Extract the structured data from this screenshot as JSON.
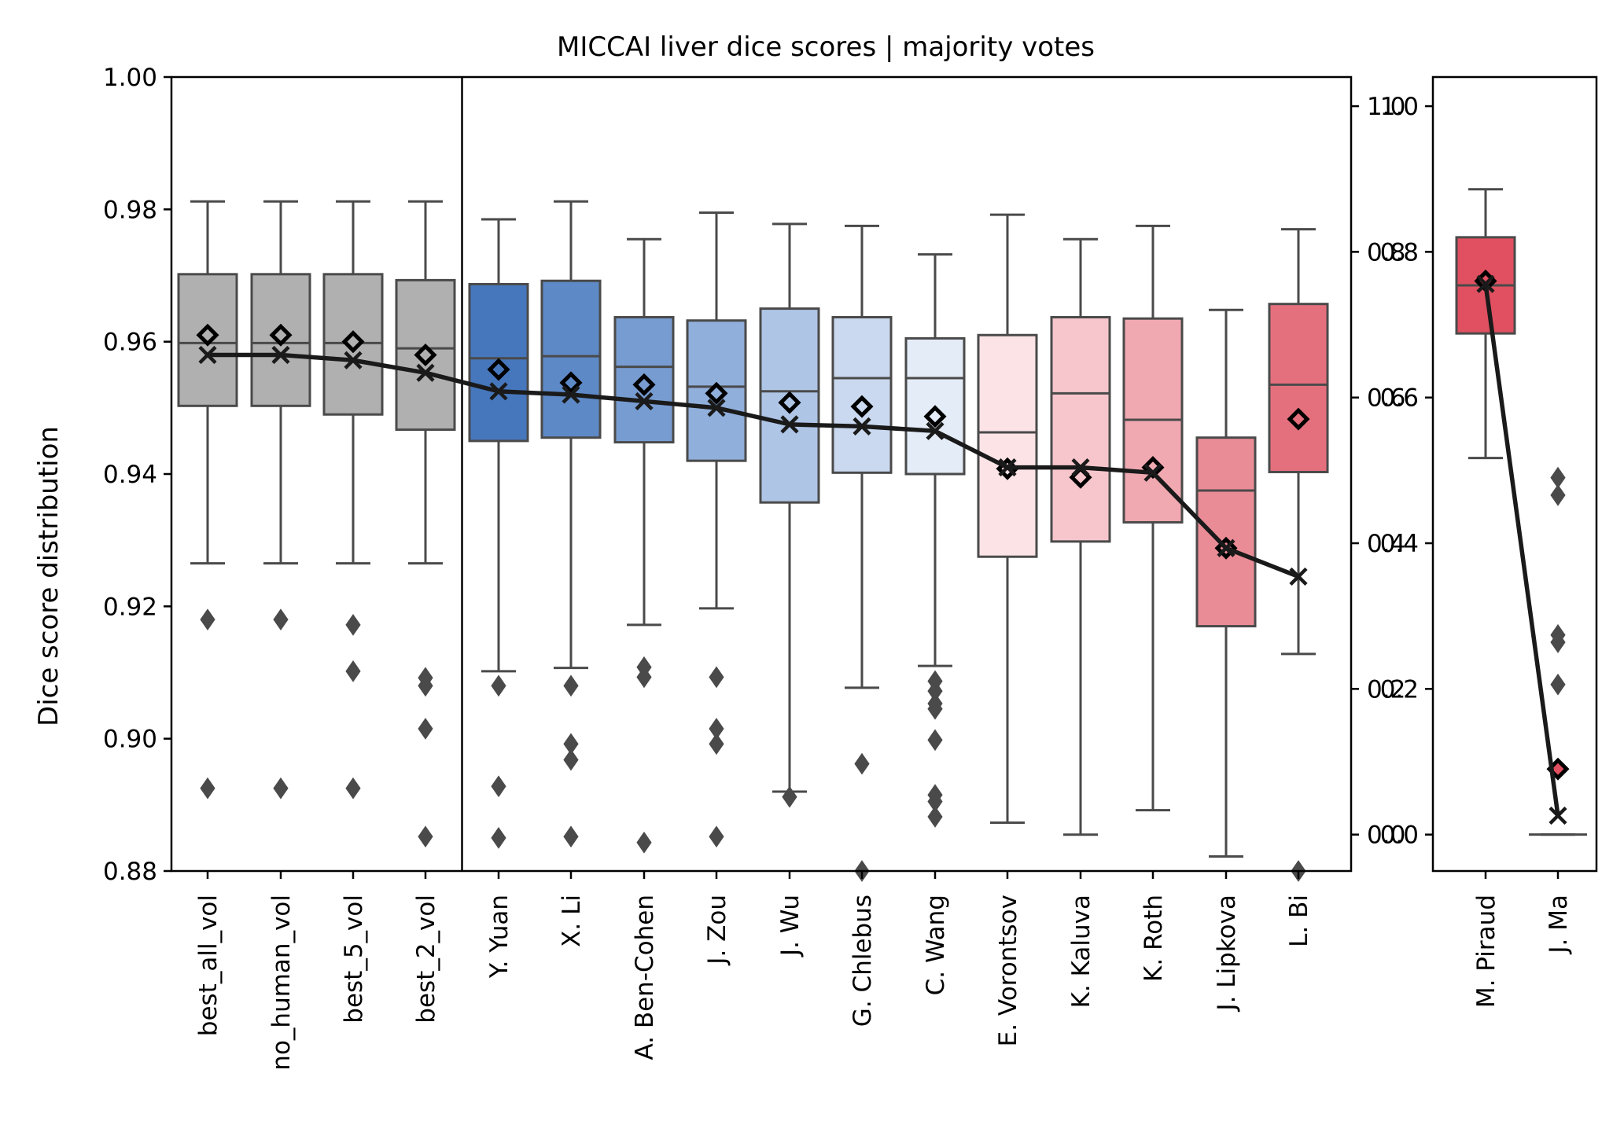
{
  "chart_data": {
    "type": "box",
    "title": "MICCAI liver dice scores | majority votes",
    "ylabel": "Dice score distribution",
    "xlabel": "",
    "grid": false,
    "legend": "none",
    "panels": [
      {
        "name": "main",
        "ylim": [
          0.88,
          1.0
        ],
        "yticks": [
          "1.00",
          "0.98",
          "0.96",
          "0.94",
          "0.92",
          "0.90",
          "0.88"
        ],
        "yticks_values": [
          1.0,
          0.98,
          0.96,
          0.94,
          0.92,
          0.9,
          0.88
        ],
        "separator_after_index": 3,
        "boxes": [
          {
            "label": "best_all_vol",
            "color": "#b0b0b0",
            "whislo": 0.9265,
            "q1": 0.9503,
            "med": 0.9598,
            "q3": 0.9702,
            "whishi": 0.9812,
            "mean": 0.961,
            "x_marker": 0.958,
            "outliers": [
              0.918,
              0.8925
            ]
          },
          {
            "label": "no_human_vol",
            "color": "#b0b0b0",
            "whislo": 0.9265,
            "q1": 0.9503,
            "med": 0.9598,
            "q3": 0.9702,
            "whishi": 0.9812,
            "mean": 0.961,
            "x_marker": 0.958,
            "outliers": [
              0.918,
              0.8925
            ]
          },
          {
            "label": "best_5_vol",
            "color": "#b0b0b0",
            "whislo": 0.9265,
            "q1": 0.949,
            "med": 0.9598,
            "q3": 0.9702,
            "whishi": 0.9812,
            "mean": 0.96,
            "x_marker": 0.9572,
            "outliers": [
              0.9172,
              0.9102,
              0.8925
            ]
          },
          {
            "label": "best_2_vol",
            "color": "#b0b0b0",
            "whislo": 0.9265,
            "q1": 0.9467,
            "med": 0.959,
            "q3": 0.9693,
            "whishi": 0.9812,
            "mean": 0.958,
            "x_marker": 0.9553,
            "outliers": [
              0.9092,
              0.908,
              0.9015,
              0.8852
            ]
          },
          {
            "label": "Y. Yuan",
            "color": "#4677bd",
            "whislo": 0.9102,
            "q1": 0.945,
            "med": 0.9575,
            "q3": 0.9687,
            "whishi": 0.9785,
            "mean": 0.9558,
            "x_marker": 0.9525,
            "outliers": [
              0.908,
              0.8928,
              0.885
            ]
          },
          {
            "label": "X. Li",
            "color": "#5e89c7",
            "whislo": 0.9107,
            "q1": 0.9455,
            "med": 0.9578,
            "q3": 0.9692,
            "whishi": 0.9812,
            "mean": 0.9538,
            "x_marker": 0.952,
            "outliers": [
              0.908,
              0.8992,
              0.8968,
              0.8852
            ]
          },
          {
            "label": "A. Ben-Cohen",
            "color": "#779cd1",
            "whislo": 0.9172,
            "q1": 0.9448,
            "med": 0.9562,
            "q3": 0.9637,
            "whishi": 0.9755,
            "mean": 0.9535,
            "x_marker": 0.951,
            "outliers": [
              0.9108,
              0.9093,
              0.8843
            ]
          },
          {
            "label": "J. Zou",
            "color": "#90afdb",
            "whislo": 0.9197,
            "q1": 0.942,
            "med": 0.9532,
            "q3": 0.9632,
            "whishi": 0.9795,
            "mean": 0.9522,
            "x_marker": 0.95,
            "outliers": [
              0.9093,
              0.9015,
              0.8992,
              0.8852
            ]
          },
          {
            "label": "J. Wu",
            "color": "#aec5e6",
            "whislo": 0.892,
            "q1": 0.9357,
            "med": 0.9525,
            "q3": 0.965,
            "whishi": 0.9778,
            "mean": 0.9508,
            "x_marker": 0.9475,
            "outliers": [
              0.8912
            ]
          },
          {
            "label": "G. Chlebus",
            "color": "#cad9ef",
            "whislo": 0.9077,
            "q1": 0.9402,
            "med": 0.9545,
            "q3": 0.9637,
            "whishi": 0.9775,
            "mean": 0.9502,
            "x_marker": 0.9472,
            "outliers": [
              0.8962,
              0.88
            ]
          },
          {
            "label": "C. Wang",
            "color": "#e4ecf7",
            "whislo": 0.911,
            "q1": 0.94,
            "med": 0.9545,
            "q3": 0.9605,
            "whishi": 0.9732,
            "mean": 0.9487,
            "x_marker": 0.9465,
            "outliers": [
              0.9087,
              0.9072,
              0.9053,
              0.9045,
              0.8998,
              0.8915,
              0.8905,
              0.8882
            ]
          },
          {
            "label": "E. Vorontsov",
            "color": "#fbe3e6",
            "whislo": 0.8873,
            "q1": 0.9275,
            "med": 0.9463,
            "q3": 0.961,
            "whishi": 0.9792,
            "mean": 0.9408,
            "x_marker": 0.941,
            "outliers": []
          },
          {
            "label": "K. Kaluva",
            "color": "#f6c6cc",
            "whislo": 0.8855,
            "q1": 0.9298,
            "med": 0.9522,
            "q3": 0.9637,
            "whishi": 0.9755,
            "mean": 0.9395,
            "x_marker": 0.941,
            "outliers": []
          },
          {
            "label": "K. Roth",
            "color": "#f0a9b1",
            "whislo": 0.8892,
            "q1": 0.9327,
            "med": 0.9482,
            "q3": 0.9635,
            "whishi": 0.9775,
            "mean": 0.941,
            "x_marker": 0.9402,
            "outliers": []
          },
          {
            "label": "J. Lipkova",
            "color": "#ea8c96",
            "whislo": 0.8822,
            "q1": 0.917,
            "med": 0.9375,
            "q3": 0.9455,
            "whishi": 0.9648,
            "mean": 0.9288,
            "x_marker": 0.9288,
            "outliers": []
          },
          {
            "label": "L. Bi",
            "color": "#e5707d",
            "whislo": 0.9128,
            "q1": 0.9403,
            "med": 0.9535,
            "q3": 0.9657,
            "whishi": 0.977,
            "mean": 0.9483,
            "x_marker": 0.9245,
            "outliers": [
              0.88
            ]
          }
        ]
      },
      {
        "name": "side",
        "ylim": [
          -0.05,
          1.04
        ],
        "yticks": [
          "1.0",
          "0.8",
          "0.6",
          "0.4",
          "0.2",
          "0.0"
        ],
        "yticks_values": [
          1.0,
          0.8,
          0.6,
          0.4,
          0.2,
          0.0
        ],
        "boxes": [
          {
            "label": "M. Piraud",
            "color": "#e15060",
            "whislo": 0.517,
            "q1": 0.688,
            "med": 0.754,
            "q3": 0.82,
            "whishi": 0.886,
            "mean": 0.76,
            "x_marker": 0.756,
            "outliers": []
          },
          {
            "label": "J. Ma",
            "color": "#e15060",
            "whislo": 0.0,
            "q1": 0.0,
            "med": 0.0,
            "q3": 0.0,
            "whishi": 0.0,
            "mean": 0.09,
            "x_marker": 0.026,
            "outliers": [
              0.49,
              0.466,
              0.274,
              0.264,
              0.206,
              0.09
            ]
          }
        ]
      }
    ]
  }
}
